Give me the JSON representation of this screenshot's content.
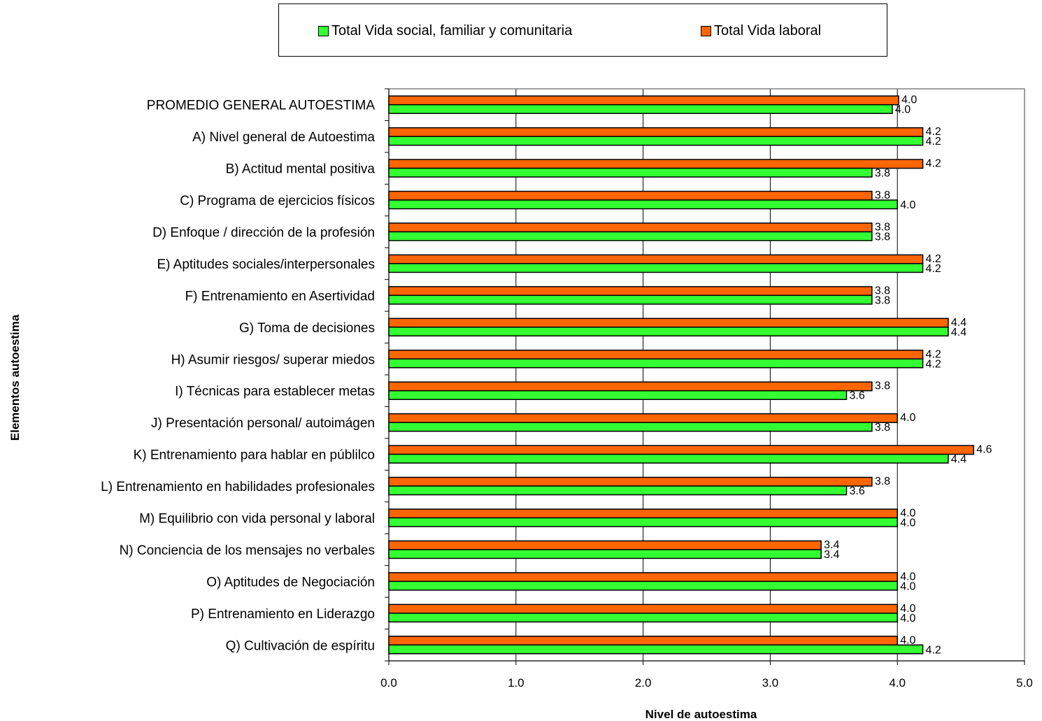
{
  "chart_data": {
    "type": "bar",
    "orientation": "horizontal",
    "xlabel": "Nivel de autoestima",
    "ylabel": "Elementos autoestima",
    "xlim": [
      0,
      5
    ],
    "xticks": [
      "0.0",
      "1.0",
      "2.0",
      "3.0",
      "4.0",
      "5.0"
    ],
    "grid": true,
    "legend_position": "top",
    "categories": [
      "PROMEDIO GENERAL AUTOESTIMA",
      "A) Nivel general de Autoestima",
      "B) Actitud mental positiva",
      "C) Programa de ejercicios físicos",
      "D) Enfoque / dirección de la profesión",
      "E) Aptitudes sociales/interpersonales",
      "F) Entrenamiento en Asertividad",
      "G) Toma de decisiones",
      "H) Asumir riesgos/ superar miedos",
      "I) Técnicas para establecer metas",
      "J) Presentación personal/ autoimágen",
      "K) Entrenamiento para hablar en públilco",
      "L) Entrenamiento en habilidades profesionales",
      "M) Equilibrio con vida personal y laboral",
      "N) Conciencia de los mensajes no verbales",
      "O) Aptitudes de Negociación",
      "P) Entrenamiento en Liderazgo",
      "Q) Cultivación de espíritu"
    ],
    "series": [
      {
        "name": "Total Vida laboral",
        "color": "#FF6600",
        "values": [
          4.01,
          4.2,
          4.2,
          3.8,
          3.8,
          4.2,
          3.8,
          4.4,
          4.2,
          3.8,
          4.0,
          4.6,
          3.8,
          4.0,
          3.4,
          4.0,
          4.0,
          4.0
        ],
        "labels": [
          "4.0",
          "4.2",
          "4.2",
          "3.8",
          "3.8",
          "4.2",
          "3.8",
          "4.4",
          "4.2",
          "3.8",
          "4.0",
          "4.6",
          "3.8",
          "4.0",
          "3.4",
          "4.0",
          "4.0",
          "4.0"
        ]
      },
      {
        "name": "Total Vida social, familiar y comunitaria",
        "color": "#33FF33",
        "values": [
          3.96,
          4.2,
          3.8,
          4.0,
          3.8,
          4.2,
          3.8,
          4.4,
          4.2,
          3.6,
          3.8,
          4.4,
          3.6,
          4.0,
          3.4,
          4.0,
          4.0,
          4.2
        ],
        "labels": [
          "4.0",
          "4.2",
          "3.8",
          "4.0",
          "3.8",
          "4.2",
          "3.8",
          "4.4",
          "4.2",
          "3.6",
          "3.8",
          "4.4",
          "3.6",
          "4.0",
          "3.4",
          "4.0",
          "4.0",
          "4.2"
        ]
      }
    ],
    "legend": [
      {
        "name": "Total Vida social, familiar y comunitaria",
        "color": "#33FF33"
      },
      {
        "name": "Total Vida laboral",
        "color": "#FF6600"
      }
    ]
  }
}
